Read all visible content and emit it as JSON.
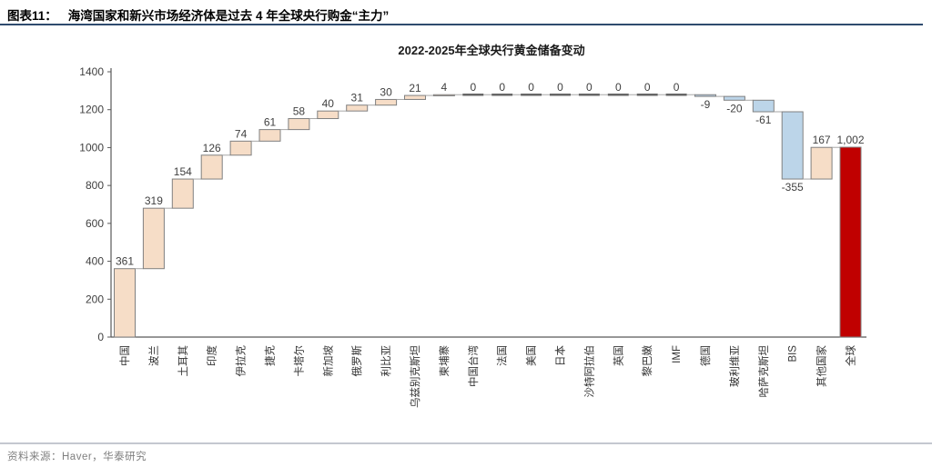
{
  "figure": {
    "label": "图表11：",
    "title": "海湾国家和新兴市场经济体是过去 4 年全球央行购金“主力”"
  },
  "source": "资料来源：Haver，华泰研究",
  "chart_data": {
    "type": "bar",
    "subtype": "waterfall",
    "title": "2022-2025年全球央行黄金储备变动",
    "categories": [
      "中国",
      "波兰",
      "土耳其",
      "印度",
      "伊拉克",
      "捷克",
      "卡塔尔",
      "新加坡",
      "俄罗斯",
      "利比亚",
      "乌兹别克斯坦",
      "柬埔寨",
      "中国台湾",
      "法国",
      "美国",
      "日本",
      "沙特阿拉伯",
      "英国",
      "黎巴嫩",
      "IMF",
      "德国",
      "玻利维亚",
      "哈萨克斯坦",
      "BIS",
      "其他国家",
      "全球"
    ],
    "values": [
      361,
      319,
      154,
      126,
      74,
      61,
      58,
      40,
      31,
      30,
      21,
      4,
      0,
      0,
      0,
      0,
      0,
      0,
      0,
      0,
      -9,
      -20,
      -61,
      -355,
      167,
      1002
    ],
    "value_labels": [
      "361",
      "319",
      "154",
      "126",
      "74",
      "61",
      "58",
      "40",
      "31",
      "30",
      "21",
      "4",
      "0",
      "0",
      "0",
      "0",
      "0",
      "0",
      "0",
      "0",
      "-9",
      "-20",
      "-61",
      "-355",
      "167",
      "1,002"
    ],
    "types": [
      "increase",
      "increase",
      "increase",
      "increase",
      "increase",
      "increase",
      "increase",
      "increase",
      "increase",
      "increase",
      "increase",
      "increase",
      "zero",
      "zero",
      "zero",
      "zero",
      "zero",
      "zero",
      "zero",
      "zero",
      "decrease",
      "decrease",
      "decrease",
      "decrease",
      "increase",
      "total"
    ],
    "xlabel": "",
    "ylabel": "",
    "ylim": [
      0,
      1400
    ],
    "yticks": [
      0,
      200,
      400,
      600,
      800,
      1000,
      1200,
      1400
    ],
    "gridlines": false,
    "legend": "none",
    "colors": {
      "increase": "#f6ddc7",
      "decrease": "#bcd5e9",
      "total": "#c00000",
      "bar_border": "#808080",
      "zero_dash": "#666666",
      "connector": "#a6a6a6",
      "axis": "#595959",
      "tick_text": "#404040",
      "value_text": "#404040",
      "category_text": "#333333"
    }
  }
}
